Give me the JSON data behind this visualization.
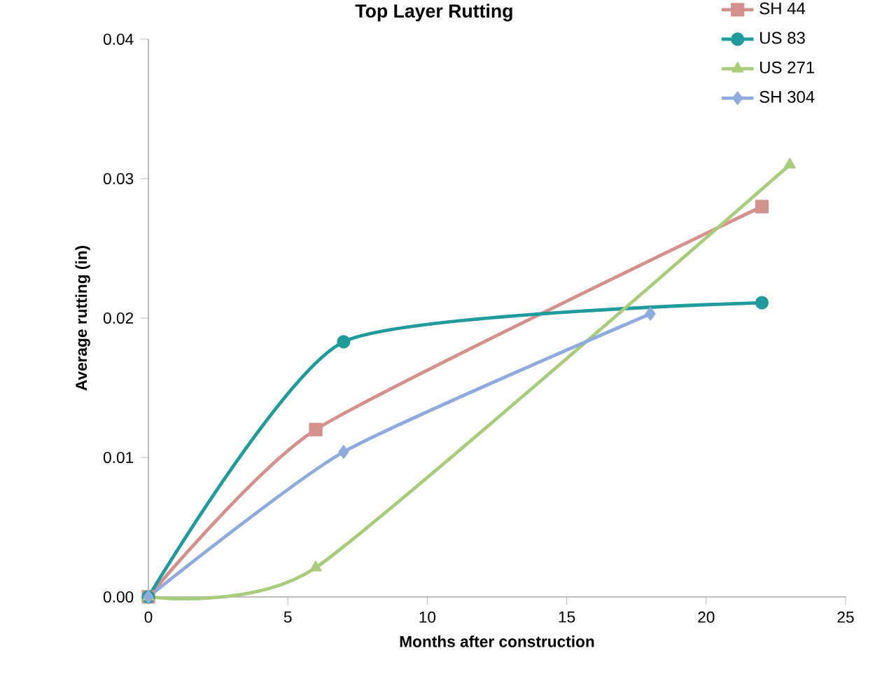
{
  "chart_data": {
    "type": "line",
    "title": "Top Layer Rutting",
    "xlabel": "Months after construction",
    "ylabel": "Average rutting (in)",
    "xlim": [
      0,
      25
    ],
    "xticks": [
      0,
      5,
      10,
      15,
      20,
      25
    ],
    "ylim": [
      0,
      0.04
    ],
    "yticks": [
      {
        "value": 0,
        "label": "0.00"
      },
      {
        "value": 0.01,
        "label": "0.01"
      },
      {
        "value": 0.02,
        "label": "0.02"
      },
      {
        "value": 0.03,
        "label": "0.03"
      },
      {
        "value": 0.04,
        "label": "0.04"
      }
    ],
    "grid": false,
    "legend": "top right",
    "line_style": "solid",
    "series": [
      {
        "name": "SH 44",
        "color": "#d4908d",
        "marker": "square",
        "x": [
          0,
          6,
          22
        ],
        "values": [
          0,
          0.012,
          0.028
        ]
      },
      {
        "name": "US 83",
        "color": "#1f9b9b",
        "marker": "circle",
        "x": [
          0,
          7,
          22
        ],
        "values": [
          0,
          0.0183,
          0.0211
        ]
      },
      {
        "name": "US 271",
        "color": "#a9cc7a",
        "marker": "triangle",
        "x": [
          0,
          6,
          23
        ],
        "values": [
          0,
          0.0021,
          0.031
        ]
      },
      {
        "name": "SH 304",
        "color": "#8faadc",
        "marker": "diamond",
        "x": [
          0,
          7,
          18
        ],
        "values": [
          0,
          0.0104,
          0.0203
        ]
      }
    ]
  }
}
